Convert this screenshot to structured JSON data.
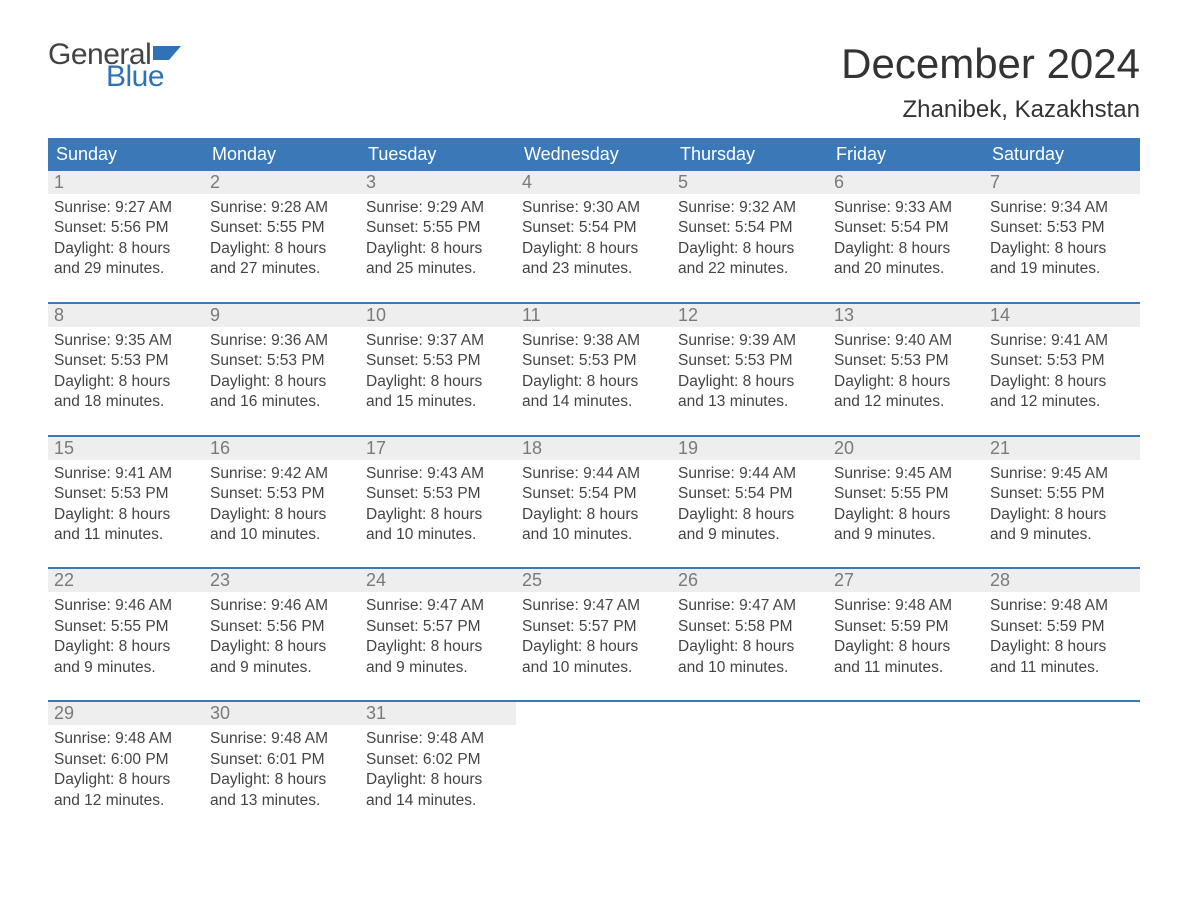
{
  "brand": {
    "word1": "General",
    "word2": "Blue",
    "flag_color": "#2f72b6",
    "word2_color": "#2f72b6",
    "word1_color": "#444444"
  },
  "header": {
    "month_title": "December 2024",
    "location": "Zhanibek, Kazakhstan"
  },
  "style": {
    "header_bg": "#3b78b8",
    "header_text": "#ffffff",
    "daynum_bg": "#eeeeee",
    "daynum_text": "#7a7a7a",
    "body_text": "#444444",
    "week_border": "#3b78b8",
    "page_bg": "#ffffff",
    "title_fontsize": 42,
    "location_fontsize": 24,
    "dow_fontsize": 18,
    "body_fontsize": 15.5
  },
  "days_of_week": [
    "Sunday",
    "Monday",
    "Tuesday",
    "Wednesday",
    "Thursday",
    "Friday",
    "Saturday"
  ],
  "weeks": [
    [
      {
        "n": "1",
        "sunrise": "Sunrise: 9:27 AM",
        "sunset": "Sunset: 5:56 PM",
        "dl1": "Daylight: 8 hours",
        "dl2": "and 29 minutes."
      },
      {
        "n": "2",
        "sunrise": "Sunrise: 9:28 AM",
        "sunset": "Sunset: 5:55 PM",
        "dl1": "Daylight: 8 hours",
        "dl2": "and 27 minutes."
      },
      {
        "n": "3",
        "sunrise": "Sunrise: 9:29 AM",
        "sunset": "Sunset: 5:55 PM",
        "dl1": "Daylight: 8 hours",
        "dl2": "and 25 minutes."
      },
      {
        "n": "4",
        "sunrise": "Sunrise: 9:30 AM",
        "sunset": "Sunset: 5:54 PM",
        "dl1": "Daylight: 8 hours",
        "dl2": "and 23 minutes."
      },
      {
        "n": "5",
        "sunrise": "Sunrise: 9:32 AM",
        "sunset": "Sunset: 5:54 PM",
        "dl1": "Daylight: 8 hours",
        "dl2": "and 22 minutes."
      },
      {
        "n": "6",
        "sunrise": "Sunrise: 9:33 AM",
        "sunset": "Sunset: 5:54 PM",
        "dl1": "Daylight: 8 hours",
        "dl2": "and 20 minutes."
      },
      {
        "n": "7",
        "sunrise": "Sunrise: 9:34 AM",
        "sunset": "Sunset: 5:53 PM",
        "dl1": "Daylight: 8 hours",
        "dl2": "and 19 minutes."
      }
    ],
    [
      {
        "n": "8",
        "sunrise": "Sunrise: 9:35 AM",
        "sunset": "Sunset: 5:53 PM",
        "dl1": "Daylight: 8 hours",
        "dl2": "and 18 minutes."
      },
      {
        "n": "9",
        "sunrise": "Sunrise: 9:36 AM",
        "sunset": "Sunset: 5:53 PM",
        "dl1": "Daylight: 8 hours",
        "dl2": "and 16 minutes."
      },
      {
        "n": "10",
        "sunrise": "Sunrise: 9:37 AM",
        "sunset": "Sunset: 5:53 PM",
        "dl1": "Daylight: 8 hours",
        "dl2": "and 15 minutes."
      },
      {
        "n": "11",
        "sunrise": "Sunrise: 9:38 AM",
        "sunset": "Sunset: 5:53 PM",
        "dl1": "Daylight: 8 hours",
        "dl2": "and 14 minutes."
      },
      {
        "n": "12",
        "sunrise": "Sunrise: 9:39 AM",
        "sunset": "Sunset: 5:53 PM",
        "dl1": "Daylight: 8 hours",
        "dl2": "and 13 minutes."
      },
      {
        "n": "13",
        "sunrise": "Sunrise: 9:40 AM",
        "sunset": "Sunset: 5:53 PM",
        "dl1": "Daylight: 8 hours",
        "dl2": "and 12 minutes."
      },
      {
        "n": "14",
        "sunrise": "Sunrise: 9:41 AM",
        "sunset": "Sunset: 5:53 PM",
        "dl1": "Daylight: 8 hours",
        "dl2": "and 12 minutes."
      }
    ],
    [
      {
        "n": "15",
        "sunrise": "Sunrise: 9:41 AM",
        "sunset": "Sunset: 5:53 PM",
        "dl1": "Daylight: 8 hours",
        "dl2": "and 11 minutes."
      },
      {
        "n": "16",
        "sunrise": "Sunrise: 9:42 AM",
        "sunset": "Sunset: 5:53 PM",
        "dl1": "Daylight: 8 hours",
        "dl2": "and 10 minutes."
      },
      {
        "n": "17",
        "sunrise": "Sunrise: 9:43 AM",
        "sunset": "Sunset: 5:53 PM",
        "dl1": "Daylight: 8 hours",
        "dl2": "and 10 minutes."
      },
      {
        "n": "18",
        "sunrise": "Sunrise: 9:44 AM",
        "sunset": "Sunset: 5:54 PM",
        "dl1": "Daylight: 8 hours",
        "dl2": "and 10 minutes."
      },
      {
        "n": "19",
        "sunrise": "Sunrise: 9:44 AM",
        "sunset": "Sunset: 5:54 PM",
        "dl1": "Daylight: 8 hours",
        "dl2": "and 9 minutes."
      },
      {
        "n": "20",
        "sunrise": "Sunrise: 9:45 AM",
        "sunset": "Sunset: 5:55 PM",
        "dl1": "Daylight: 8 hours",
        "dl2": "and 9 minutes."
      },
      {
        "n": "21",
        "sunrise": "Sunrise: 9:45 AM",
        "sunset": "Sunset: 5:55 PM",
        "dl1": "Daylight: 8 hours",
        "dl2": "and 9 minutes."
      }
    ],
    [
      {
        "n": "22",
        "sunrise": "Sunrise: 9:46 AM",
        "sunset": "Sunset: 5:55 PM",
        "dl1": "Daylight: 8 hours",
        "dl2": "and 9 minutes."
      },
      {
        "n": "23",
        "sunrise": "Sunrise: 9:46 AM",
        "sunset": "Sunset: 5:56 PM",
        "dl1": "Daylight: 8 hours",
        "dl2": "and 9 minutes."
      },
      {
        "n": "24",
        "sunrise": "Sunrise: 9:47 AM",
        "sunset": "Sunset: 5:57 PM",
        "dl1": "Daylight: 8 hours",
        "dl2": "and 9 minutes."
      },
      {
        "n": "25",
        "sunrise": "Sunrise: 9:47 AM",
        "sunset": "Sunset: 5:57 PM",
        "dl1": "Daylight: 8 hours",
        "dl2": "and 10 minutes."
      },
      {
        "n": "26",
        "sunrise": "Sunrise: 9:47 AM",
        "sunset": "Sunset: 5:58 PM",
        "dl1": "Daylight: 8 hours",
        "dl2": "and 10 minutes."
      },
      {
        "n": "27",
        "sunrise": "Sunrise: 9:48 AM",
        "sunset": "Sunset: 5:59 PM",
        "dl1": "Daylight: 8 hours",
        "dl2": "and 11 minutes."
      },
      {
        "n": "28",
        "sunrise": "Sunrise: 9:48 AM",
        "sunset": "Sunset: 5:59 PM",
        "dl1": "Daylight: 8 hours",
        "dl2": "and 11 minutes."
      }
    ],
    [
      {
        "n": "29",
        "sunrise": "Sunrise: 9:48 AM",
        "sunset": "Sunset: 6:00 PM",
        "dl1": "Daylight: 8 hours",
        "dl2": "and 12 minutes."
      },
      {
        "n": "30",
        "sunrise": "Sunrise: 9:48 AM",
        "sunset": "Sunset: 6:01 PM",
        "dl1": "Daylight: 8 hours",
        "dl2": "and 13 minutes."
      },
      {
        "n": "31",
        "sunrise": "Sunrise: 9:48 AM",
        "sunset": "Sunset: 6:02 PM",
        "dl1": "Daylight: 8 hours",
        "dl2": "and 14 minutes."
      },
      {
        "empty": true
      },
      {
        "empty": true
      },
      {
        "empty": true
      },
      {
        "empty": true
      }
    ]
  ]
}
